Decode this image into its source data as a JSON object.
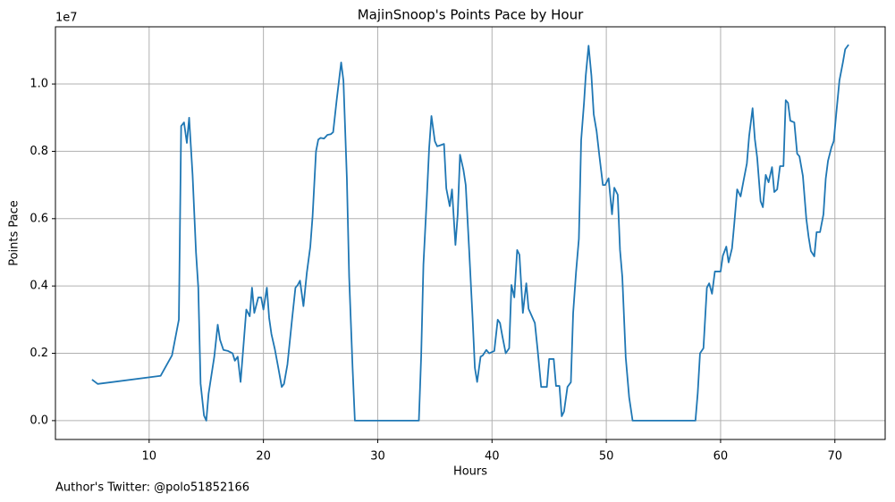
{
  "chart_data": {
    "type": "line",
    "title": "MajinSnoop's Points Pace by Hour",
    "x_label": "Hours",
    "y_label": "Points Pace",
    "y_offset_label": "1e7",
    "footnote": "Author's Twitter: @polo51852166",
    "color": "#1f77b4",
    "grid": true,
    "xlim": [
      1.8,
      74.4
    ],
    "xticks": [
      10,
      20,
      30,
      40,
      50,
      60,
      70
    ],
    "ylim": [
      -560000,
      11700000
    ],
    "yticks": [
      {
        "value": 0,
        "label": "0.0"
      },
      {
        "value": 2000000,
        "label": "0.2"
      },
      {
        "value": 4000000,
        "label": "0.4"
      },
      {
        "value": 6000000,
        "label": "0.6"
      },
      {
        "value": 8000000,
        "label": "0.8"
      },
      {
        "value": 10000000,
        "label": "1.0"
      }
    ],
    "x": [
      5.0,
      5.5,
      11.0,
      12.0,
      12.6,
      12.8,
      13.05,
      13.3,
      13.5,
      13.8,
      14.1,
      14.3,
      14.5,
      14.8,
      15.0,
      15.2,
      15.7,
      16.0,
      16.2,
      16.5,
      16.9,
      17.3,
      17.5,
      17.75,
      18.0,
      18.2,
      18.5,
      18.8,
      19.0,
      19.2,
      19.55,
      19.8,
      20.0,
      20.3,
      20.5,
      20.7,
      21.0,
      21.3,
      21.6,
      21.8,
      22.1,
      22.3,
      22.5,
      22.8,
      23.0,
      23.2,
      23.5,
      23.8,
      24.1,
      24.3,
      24.6,
      24.8,
      25.0,
      25.3,
      25.6,
      25.9,
      26.1,
      26.4,
      26.8,
      27.0,
      27.3,
      27.5,
      27.8,
      28.0,
      33.6,
      33.8,
      34.0,
      34.3,
      34.5,
      34.7,
      35.0,
      35.2,
      35.4,
      35.8,
      36.0,
      36.3,
      36.5,
      36.8,
      37.0,
      37.2,
      37.5,
      37.7,
      38.0,
      38.3,
      38.5,
      38.7,
      39.0,
      39.2,
      39.5,
      39.75,
      40.2,
      40.5,
      40.7,
      40.9,
      41.2,
      41.5,
      41.7,
      41.95,
      42.2,
      42.4,
      42.7,
      43.0,
      43.2,
      43.75,
      44.0,
      44.3,
      44.8,
      45.0,
      45.4,
      45.6,
      45.9,
      46.1,
      46.3,
      46.6,
      46.9,
      47.1,
      47.35,
      47.6,
      47.8,
      48.05,
      48.2,
      48.45,
      48.7,
      48.9,
      49.15,
      49.4,
      49.7,
      49.9,
      50.2,
      50.5,
      50.7,
      51.0,
      51.2,
      51.4,
      51.7,
      52.0,
      52.3,
      57.8,
      58.0,
      58.2,
      58.5,
      58.8,
      59.0,
      59.25,
      59.5,
      60.0,
      60.2,
      60.5,
      60.7,
      61.0,
      61.2,
      61.45,
      61.75,
      62.0,
      62.3,
      62.5,
      62.8,
      63.0,
      63.2,
      63.5,
      63.7,
      63.95,
      64.2,
      64.5,
      64.7,
      64.95,
      65.2,
      65.5,
      65.7,
      65.9,
      66.1,
      66.45,
      66.7,
      66.9,
      67.2,
      67.5,
      67.7,
      67.9,
      68.2,
      68.4,
      68.7,
      69.0,
      69.2,
      69.4,
      69.7,
      69.9,
      70.1,
      70.4,
      70.7,
      70.9,
      71.2
    ],
    "values": [
      1220000,
      1090000,
      1330000,
      1940000,
      3000000,
      8750000,
      8860000,
      8250000,
      9000000,
      7300000,
      5000000,
      3950000,
      1100000,
      150000,
      0,
      800000,
      1900000,
      2850000,
      2400000,
      2100000,
      2070000,
      2000000,
      1780000,
      1900000,
      1150000,
      2000000,
      3300000,
      3100000,
      3950000,
      3200000,
      3660000,
      3660000,
      3300000,
      3950000,
      3050000,
      2570000,
      2120000,
      1570000,
      1000000,
      1090000,
      1670000,
      2330000,
      3000000,
      3950000,
      4030000,
      4160000,
      3400000,
      4400000,
      5170000,
      6070000,
      8000000,
      8350000,
      8400000,
      8380000,
      8490000,
      8510000,
      8570000,
      9500000,
      10640000,
      10100000,
      7200000,
      4270000,
      1570000,
      0,
      0,
      1900000,
      4640000,
      6650000,
      8100000,
      9050000,
      8300000,
      8150000,
      8170000,
      8220000,
      6900000,
      6370000,
      6870000,
      5220000,
      6130000,
      7900000,
      7450000,
      7000000,
      5070000,
      3050000,
      1570000,
      1150000,
      1900000,
      1940000,
      2100000,
      2000000,
      2070000,
      3000000,
      2900000,
      2520000,
      2000000,
      2150000,
      4030000,
      3660000,
      5070000,
      4930000,
      3200000,
      4080000,
      3320000,
      2900000,
      2070000,
      1000000,
      1000000,
      1830000,
      1830000,
      1030000,
      1030000,
      130000,
      270000,
      1000000,
      1140000,
      3200000,
      4400000,
      5400000,
      8330000,
      9440000,
      10240000,
      11140000,
      10240000,
      9100000,
      8600000,
      7850000,
      7000000,
      7000000,
      7200000,
      6130000,
      6920000,
      6710000,
      5070000,
      4270000,
      1880000,
      690000,
      0,
      0,
      820000,
      2000000,
      2150000,
      3950000,
      4080000,
      3770000,
      4430000,
      4430000,
      4900000,
      5170000,
      4700000,
      5120000,
      5860000,
      6870000,
      6660000,
      7110000,
      7640000,
      8460000,
      9280000,
      8360000,
      7820000,
      6520000,
      6340000,
      7300000,
      7080000,
      7530000,
      6790000,
      6870000,
      7560000,
      7560000,
      9520000,
      9440000,
      8910000,
      8860000,
      7930000,
      7850000,
      7270000,
      6000000,
      5460000,
      5040000,
      4880000,
      5600000,
      5600000,
      6130000,
      7190000,
      7720000,
      8120000,
      8300000,
      9050000,
      10110000,
      10640000,
      11030000,
      11170000
    ]
  }
}
